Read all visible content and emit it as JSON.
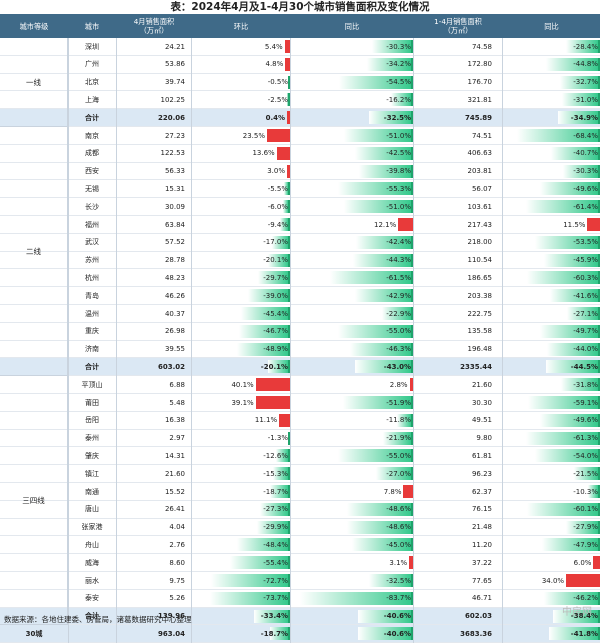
{
  "title": "表：2024年4月及1-4月30个城市销售面积及变化情况",
  "headers": {
    "tier": "城市等级",
    "city": "城市",
    "area_apr": "4月销售面积\n（万㎡）",
    "mom": "环比",
    "yoy": "同比",
    "area_ytd": "1-4月销售面积\n（万㎡）",
    "yoy_ytd": "同比"
  },
  "groups": [
    {
      "tier": "一线",
      "rows": [
        {
          "city": "深圳",
          "area": "24.21",
          "mom": "5.4%",
          "mom_v": 5.4,
          "yoy": "-30.3%",
          "yoy_v": -30.3,
          "ytd": "74.58",
          "yoy_ytd": "-28.4%",
          "yoy_ytd_v": -28.4
        },
        {
          "city": "广州",
          "area": "53.86",
          "mom": "4.8%",
          "mom_v": 4.8,
          "yoy": "-34.2%",
          "yoy_v": -34.2,
          "ytd": "172.80",
          "yoy_ytd": "-44.8%",
          "yoy_ytd_v": -44.8
        },
        {
          "city": "北京",
          "area": "39.74",
          "mom": "-0.5%",
          "mom_v": -0.5,
          "yoy": "-54.5%",
          "yoy_v": -54.5,
          "ytd": "176.70",
          "yoy_ytd": "-32.7%",
          "yoy_ytd_v": -32.7
        },
        {
          "city": "上海",
          "area": "102.25",
          "mom": "-2.5%",
          "mom_v": -2.5,
          "yoy": "-16.2%",
          "yoy_v": -16.2,
          "ytd": "321.81",
          "yoy_ytd": "-31.0%",
          "yoy_ytd_v": -31.0
        }
      ],
      "sum": {
        "city": "合计",
        "area": "220.06",
        "mom": "0.4%",
        "mom_v": 0.4,
        "yoy": "-32.5%",
        "yoy_v": -32.5,
        "ytd": "745.89",
        "yoy_ytd": "-34.9%",
        "yoy_ytd_v": -34.9
      }
    },
    {
      "tier": "二线",
      "rows": [
        {
          "city": "南京",
          "area": "27.23",
          "mom": "23.5%",
          "mom_v": 23.5,
          "yoy": "-51.0%",
          "yoy_v": -51.0,
          "ytd": "74.51",
          "yoy_ytd": "-68.4%",
          "yoy_ytd_v": -68.4
        },
        {
          "city": "成都",
          "area": "122.53",
          "mom": "13.6%",
          "mom_v": 13.6,
          "yoy": "-42.5%",
          "yoy_v": -42.5,
          "ytd": "406.63",
          "yoy_ytd": "-40.7%",
          "yoy_ytd_v": -40.7
        },
        {
          "city": "西安",
          "area": "56.33",
          "mom": "3.0%",
          "mom_v": 3.0,
          "yoy": "-39.8%",
          "yoy_v": -39.8,
          "ytd": "203.81",
          "yoy_ytd": "-30.3%",
          "yoy_ytd_v": -30.3
        },
        {
          "city": "无锡",
          "area": "15.31",
          "mom": "-5.5%",
          "mom_v": -5.5,
          "yoy": "-55.3%",
          "yoy_v": -55.3,
          "ytd": "56.07",
          "yoy_ytd": "-49.6%",
          "yoy_ytd_v": -49.6
        },
        {
          "city": "长沙",
          "area": "30.09",
          "mom": "-6.0%",
          "mom_v": -6.0,
          "yoy": "-51.0%",
          "yoy_v": -51.0,
          "ytd": "103.61",
          "yoy_ytd": "-61.4%",
          "yoy_ytd_v": -61.4
        },
        {
          "city": "福州",
          "area": "63.84",
          "mom": "-9.4%",
          "mom_v": -9.4,
          "yoy": "12.1%",
          "yoy_v": 12.1,
          "ytd": "217.43",
          "yoy_ytd": "11.5%",
          "yoy_ytd_v": 11.5
        },
        {
          "city": "武汉",
          "area": "57.52",
          "mom": "-17.0%",
          "mom_v": -17.0,
          "yoy": "-42.4%",
          "yoy_v": -42.4,
          "ytd": "218.00",
          "yoy_ytd": "-53.5%",
          "yoy_ytd_v": -53.5
        },
        {
          "city": "苏州",
          "area": "28.78",
          "mom": "-20.1%",
          "mom_v": -20.1,
          "yoy": "-44.3%",
          "yoy_v": -44.3,
          "ytd": "110.54",
          "yoy_ytd": "-45.9%",
          "yoy_ytd_v": -45.9
        },
        {
          "city": "杭州",
          "area": "48.23",
          "mom": "-29.7%",
          "mom_v": -29.7,
          "yoy": "-61.5%",
          "yoy_v": -61.5,
          "ytd": "186.65",
          "yoy_ytd": "-60.3%",
          "yoy_ytd_v": -60.3
        },
        {
          "city": "青岛",
          "area": "46.26",
          "mom": "-39.0%",
          "mom_v": -39.0,
          "yoy": "-42.9%",
          "yoy_v": -42.9,
          "ytd": "203.38",
          "yoy_ytd": "-41.6%",
          "yoy_ytd_v": -41.6
        },
        {
          "city": "温州",
          "area": "40.37",
          "mom": "-45.4%",
          "mom_v": -45.4,
          "yoy": "-22.9%",
          "yoy_v": -22.9,
          "ytd": "222.75",
          "yoy_ytd": "-27.1%",
          "yoy_ytd_v": -27.1
        },
        {
          "city": "重庆",
          "area": "26.98",
          "mom": "-46.7%",
          "mom_v": -46.7,
          "yoy": "-55.0%",
          "yoy_v": -55.0,
          "ytd": "135.58",
          "yoy_ytd": "-49.7%",
          "yoy_ytd_v": -49.7
        },
        {
          "city": "济南",
          "area": "39.55",
          "mom": "-48.9%",
          "mom_v": -48.9,
          "yoy": "-46.3%",
          "yoy_v": -46.3,
          "ytd": "196.48",
          "yoy_ytd": "-44.0%",
          "yoy_ytd_v": -44.0
        }
      ],
      "sum": {
        "city": "合计",
        "area": "603.02",
        "mom": "-20.1%",
        "mom_v": -20.1,
        "yoy": "-43.0%",
        "yoy_v": -43.0,
        "ytd": "2335.44",
        "yoy_ytd": "-44.5%",
        "yoy_ytd_v": -44.5
      }
    },
    {
      "tier": "三四线",
      "rows": [
        {
          "city": "平顶山",
          "area": "6.88",
          "mom": "40.1%",
          "mom_v": 40.1,
          "yoy": "2.8%",
          "yoy_v": 2.8,
          "ytd": "21.60",
          "yoy_ytd": "-31.8%",
          "yoy_ytd_v": -31.8
        },
        {
          "city": "莆田",
          "area": "5.48",
          "mom": "39.1%",
          "mom_v": 39.1,
          "yoy": "-51.9%",
          "yoy_v": -51.9,
          "ytd": "30.30",
          "yoy_ytd": "-59.1%",
          "yoy_ytd_v": -59.1
        },
        {
          "city": "岳阳",
          "area": "16.38",
          "mom": "11.1%",
          "mom_v": 11.1,
          "yoy": "-11.8%",
          "yoy_v": -11.8,
          "ytd": "49.51",
          "yoy_ytd": "-49.6%",
          "yoy_ytd_v": -49.6
        },
        {
          "city": "泰州",
          "area": "2.97",
          "mom": "-1.3%",
          "mom_v": -1.3,
          "yoy": "-21.9%",
          "yoy_v": -21.9,
          "ytd": "9.80",
          "yoy_ytd": "-61.3%",
          "yoy_ytd_v": -61.3
        },
        {
          "city": "肇庆",
          "area": "14.31",
          "mom": "-12.6%",
          "mom_v": -12.6,
          "yoy": "-55.0%",
          "yoy_v": -55.0,
          "ytd": "61.81",
          "yoy_ytd": "-54.0%",
          "yoy_ytd_v": -54.0
        },
        {
          "city": "镇江",
          "area": "21.60",
          "mom": "-15.3%",
          "mom_v": -15.3,
          "yoy": "-27.0%",
          "yoy_v": -27.0,
          "ytd": "96.23",
          "yoy_ytd": "-21.5%",
          "yoy_ytd_v": -21.5
        },
        {
          "city": "南通",
          "area": "15.52",
          "mom": "-18.7%",
          "mom_v": -18.7,
          "yoy": "7.8%",
          "yoy_v": 7.8,
          "ytd": "62.37",
          "yoy_ytd": "-10.3%",
          "yoy_ytd_v": -10.3
        },
        {
          "city": "唐山",
          "area": "26.41",
          "mom": "-27.3%",
          "mom_v": -27.3,
          "yoy": "-48.6%",
          "yoy_v": -48.6,
          "ytd": "76.15",
          "yoy_ytd": "-60.1%",
          "yoy_ytd_v": -60.1
        },
        {
          "city": "张家港",
          "area": "4.04",
          "mom": "-29.9%",
          "mom_v": -29.9,
          "yoy": "-48.6%",
          "yoy_v": -48.6,
          "ytd": "21.48",
          "yoy_ytd": "-27.9%",
          "yoy_ytd_v": -27.9
        },
        {
          "city": "舟山",
          "area": "2.76",
          "mom": "-48.4%",
          "mom_v": -48.4,
          "yoy": "-45.0%",
          "yoy_v": -45.0,
          "ytd": "11.20",
          "yoy_ytd": "-47.9%",
          "yoy_ytd_v": -47.9
        },
        {
          "city": "威海",
          "area": "8.60",
          "mom": "-55.4%",
          "mom_v": -55.4,
          "yoy": "3.1%",
          "yoy_v": 3.1,
          "ytd": "37.22",
          "yoy_ytd": "6.0%",
          "yoy_ytd_v": 6.0
        },
        {
          "city": "丽水",
          "area": "9.75",
          "mom": "-72.7%",
          "mom_v": -72.7,
          "yoy": "-32.5%",
          "yoy_v": -32.5,
          "ytd": "77.65",
          "yoy_ytd": "34.0%",
          "yoy_ytd_v": 34.0
        },
        {
          "city": "泰安",
          "area": "5.26",
          "mom": "-73.7%",
          "mom_v": -73.7,
          "yoy": "-83.7%",
          "yoy_v": -83.7,
          "ytd": "46.71",
          "yoy_ytd": "-46.2%",
          "yoy_ytd_v": -46.2
        }
      ],
      "sum": {
        "city": "合计",
        "area": "139.96",
        "mom": "-33.4%",
        "mom_v": -33.4,
        "yoy": "-40.6%",
        "yoy_v": -40.6,
        "ytd": "602.03",
        "yoy_ytd": "-38.4%",
        "yoy_ytd_v": -38.4
      }
    }
  ],
  "total": {
    "label": "30城",
    "area": "963.04",
    "mom": "-18.7%",
    "mom_v": -18.7,
    "yoy": "-40.6%",
    "yoy_v": -40.6,
    "ytd": "3683.36",
    "yoy_ytd": "-41.8%",
    "yoy_ytd_v": -41.8
  },
  "footer": "数据来源：各地住建委、房管局，诸葛数据研究中心整理",
  "watermark": "中房网",
  "colors": {
    "header": "#3f6a88",
    "negative_bar": "#34c98c",
    "positive_bar": "#e83a3a",
    "sum_row": "#dbe8f4"
  }
}
